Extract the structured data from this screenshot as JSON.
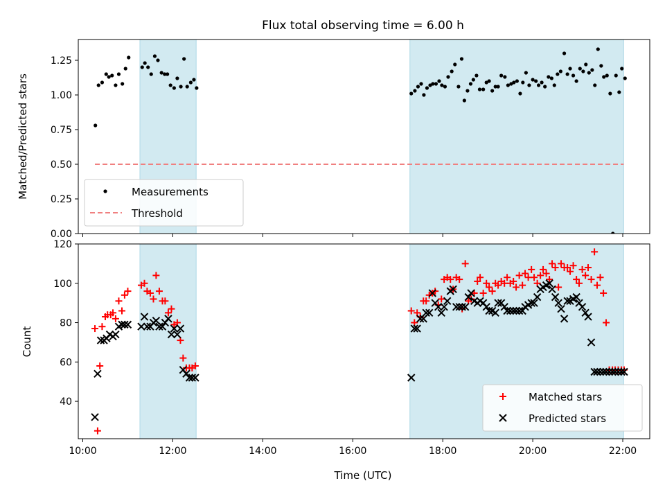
{
  "figure": {
    "title": "Flux total observing time = 6.00 h",
    "xlabel": "Time (UTC)"
  },
  "colors": {
    "shade": "#add8e6",
    "measurement": "#000000",
    "threshold": "#f08080",
    "matched": "#ff0000",
    "predicted": "#000000"
  },
  "chart_data": [
    {
      "type": "scatter",
      "panel": "top",
      "ylabel": "Matched/Predicted stars",
      "xlim": [
        9.9,
        22.6
      ],
      "ylim": [
        0.0,
        1.4
      ],
      "yticks": [
        0.0,
        0.25,
        0.5,
        0.75,
        1.0,
        1.25
      ],
      "ytick_labels": [
        "0.00",
        "0.25",
        "0.50",
        "0.75",
        "1.00",
        "1.25"
      ],
      "xticks": [
        10,
        12,
        14,
        16,
        18,
        20,
        22
      ],
      "xtick_labels": [
        "10:00",
        "12:00",
        "14:00",
        "16:00",
        "18:00",
        "20:00",
        "22:00"
      ],
      "show_xtick_labels": false,
      "shaded_spans": [
        [
          11.27,
          12.52
        ],
        [
          17.27,
          22.02
        ]
      ],
      "legend": {
        "placement": "lower-left",
        "entries": [
          "Measurements",
          "Threshold"
        ]
      },
      "series": [
        {
          "name": "Measurements",
          "kind": "points",
          "x": [
            10.28,
            10.35,
            10.43,
            10.52,
            10.58,
            10.65,
            10.73,
            10.8,
            10.88,
            10.95,
            11.02,
            11.32,
            11.38,
            11.45,
            11.52,
            11.6,
            11.67,
            11.75,
            11.82,
            11.88,
            11.95,
            12.03,
            12.1,
            12.18,
            12.25,
            12.32,
            12.4,
            12.47,
            12.53,
            17.3,
            17.38,
            17.45,
            17.52,
            17.58,
            17.65,
            17.72,
            17.78,
            17.85,
            17.92,
            17.98,
            18.05,
            18.12,
            18.2,
            18.27,
            18.35,
            18.42,
            18.48,
            18.55,
            18.62,
            18.68,
            18.75,
            18.82,
            18.9,
            18.97,
            19.03,
            19.1,
            19.17,
            19.23,
            19.3,
            19.38,
            19.45,
            19.52,
            19.58,
            19.65,
            19.72,
            19.78,
            19.85,
            19.92,
            20.0,
            20.07,
            20.13,
            20.2,
            20.27,
            20.35,
            20.42,
            20.48,
            20.55,
            20.62,
            20.7,
            20.77,
            20.83,
            20.9,
            20.97,
            21.05,
            21.12,
            21.18,
            21.25,
            21.32,
            21.38,
            21.45,
            21.52,
            21.58,
            21.65,
            21.72,
            21.78,
            21.85,
            21.92,
            21.98,
            22.05
          ],
          "y": [
            0.78,
            1.07,
            1.09,
            1.15,
            1.13,
            1.14,
            1.07,
            1.15,
            1.08,
            1.19,
            1.27,
            1.2,
            1.23,
            1.2,
            1.15,
            1.28,
            1.25,
            1.16,
            1.15,
            1.15,
            1.07,
            1.05,
            1.12,
            1.06,
            1.26,
            1.06,
            1.09,
            1.11,
            1.05,
            1.01,
            1.03,
            1.06,
            1.08,
            1.0,
            1.05,
            1.07,
            1.08,
            1.08,
            1.1,
            1.07,
            1.06,
            1.13,
            1.17,
            1.22,
            1.06,
            1.26,
            0.96,
            1.03,
            1.08,
            1.11,
            1.14,
            1.04,
            1.04,
            1.09,
            1.1,
            1.03,
            1.06,
            1.06,
            1.14,
            1.13,
            1.07,
            1.08,
            1.09,
            1.1,
            1.01,
            1.09,
            1.16,
            1.07,
            1.11,
            1.1,
            1.07,
            1.09,
            1.06,
            1.13,
            1.12,
            1.07,
            1.15,
            1.17,
            1.3,
            1.15,
            1.19,
            1.14,
            1.1,
            1.19,
            1.17,
            1.22,
            1.16,
            1.18,
            1.07,
            1.33,
            1.21,
            1.13,
            1.14,
            1.01,
            0.0,
            1.14,
            1.02,
            1.19,
            1.12
          ]
        },
        {
          "name": "Threshold",
          "kind": "dashed-line",
          "x": [
            10.27,
            22.02
          ],
          "y": [
            0.5,
            0.5
          ]
        }
      ]
    },
    {
      "type": "scatter",
      "panel": "bottom",
      "ylabel": "Count",
      "xlabel": "Time (UTC)",
      "xlim": [
        9.9,
        22.6
      ],
      "ylim": [
        21,
        120
      ],
      "yticks": [
        40,
        60,
        80,
        100,
        120
      ],
      "ytick_labels": [
        "40",
        "60",
        "80",
        "100",
        "120"
      ],
      "xticks": [
        10,
        12,
        14,
        16,
        18,
        20,
        22
      ],
      "xtick_labels": [
        "10:00",
        "12:00",
        "14:00",
        "16:00",
        "18:00",
        "20:00",
        "22:00"
      ],
      "shaded_spans": [
        [
          11.27,
          12.52
        ],
        [
          17.27,
          22.02
        ]
      ],
      "legend": {
        "placement": "lower-right",
        "entries": [
          "Matched stars",
          "Predicted stars"
        ]
      },
      "series": [
        {
          "name": "Matched stars",
          "kind": "plus",
          "x": [
            10.27,
            10.33,
            10.38,
            10.43,
            10.5,
            10.55,
            10.62,
            10.67,
            10.73,
            10.8,
            10.87,
            10.93,
            11.0,
            11.3,
            11.37,
            11.43,
            11.5,
            11.57,
            11.63,
            11.7,
            11.77,
            11.83,
            11.9,
            11.97,
            12.03,
            12.1,
            12.17,
            12.23,
            12.3,
            12.37,
            12.43,
            12.5,
            17.3,
            17.37,
            17.43,
            17.5,
            17.57,
            17.63,
            17.7,
            17.77,
            17.83,
            17.9,
            17.97,
            18.03,
            18.1,
            18.17,
            18.23,
            18.3,
            18.37,
            18.43,
            18.5,
            18.57,
            18.63,
            18.7,
            18.77,
            18.83,
            18.9,
            18.97,
            19.03,
            19.1,
            19.17,
            19.23,
            19.3,
            19.37,
            19.43,
            19.5,
            19.57,
            19.63,
            19.7,
            19.77,
            19.83,
            19.9,
            19.97,
            20.03,
            20.1,
            20.17,
            20.23,
            20.3,
            20.37,
            20.43,
            20.5,
            20.57,
            20.63,
            20.7,
            20.77,
            20.83,
            20.9,
            20.97,
            21.03,
            21.1,
            21.17,
            21.23,
            21.3,
            21.37,
            21.43,
            21.5,
            21.57,
            21.63,
            21.7,
            21.77,
            21.83,
            21.9,
            21.97,
            22.03
          ],
          "y": [
            77,
            25,
            58,
            78,
            83,
            84,
            84,
            85,
            82,
            91,
            86,
            94,
            96,
            99,
            100,
            96,
            95,
            92,
            104,
            96,
            91,
            91,
            85,
            87,
            79,
            80,
            71,
            62,
            57,
            57,
            57,
            58,
            86,
            80,
            85,
            83,
            91,
            91,
            94,
            95,
            96,
            89,
            92,
            102,
            103,
            102,
            97,
            103,
            102,
            87,
            110,
            91,
            92,
            95,
            101,
            103,
            95,
            100,
            98,
            96,
            100,
            99,
            101,
            100,
            103,
            100,
            101,
            98,
            104,
            99,
            105,
            103,
            107,
            103,
            100,
            104,
            107,
            105,
            102,
            110,
            108,
            98,
            110,
            108,
            108,
            106,
            109,
            102,
            100,
            107,
            104,
            108,
            102,
            116,
            99,
            103,
            95,
            80,
            56,
            56,
            56,
            56,
            56,
            56
          ],
          "note_y_tail": ""
        },
        {
          "name": "Predicted stars",
          "kind": "x",
          "x": [
            10.27,
            10.33,
            10.4,
            10.47,
            10.53,
            10.6,
            10.67,
            10.73,
            10.8,
            10.87,
            10.93,
            11.0,
            11.3,
            11.37,
            11.43,
            11.5,
            11.57,
            11.63,
            11.7,
            11.77,
            11.83,
            11.9,
            11.97,
            12.03,
            12.1,
            12.17,
            12.23,
            12.3,
            12.37,
            12.43,
            12.5,
            17.3,
            17.37,
            17.43,
            17.5,
            17.57,
            17.63,
            17.7,
            17.77,
            17.83,
            17.9,
            17.97,
            18.03,
            18.1,
            18.17,
            18.23,
            18.3,
            18.37,
            18.43,
            18.5,
            18.57,
            18.63,
            18.7,
            18.77,
            18.83,
            18.9,
            18.97,
            19.03,
            19.1,
            19.17,
            19.23,
            19.3,
            19.37,
            19.43,
            19.5,
            19.57,
            19.63,
            19.7,
            19.77,
            19.83,
            19.9,
            19.97,
            20.03,
            20.1,
            20.17,
            20.23,
            20.3,
            20.37,
            20.43,
            20.5,
            20.57,
            20.63,
            20.7,
            20.77,
            20.83,
            20.9,
            20.97,
            21.03,
            21.1,
            21.17,
            21.23,
            21.3,
            21.37,
            21.43,
            21.5,
            21.57,
            21.63,
            21.7,
            21.77,
            21.83,
            21.9,
            21.97,
            22.03
          ],
          "y": [
            32,
            54,
            71,
            71,
            72,
            74,
            73,
            74,
            78,
            79,
            79,
            79,
            78,
            83,
            78,
            78,
            80,
            81,
            78,
            78,
            80,
            82,
            74,
            77,
            74,
            77,
            56,
            54,
            52,
            52,
            52,
            52,
            77,
            77,
            82,
            82,
            85,
            85,
            95,
            90,
            88,
            85,
            88,
            91,
            96,
            97,
            88,
            88,
            88,
            88,
            93,
            95,
            91,
            90,
            91,
            90,
            88,
            86,
            86,
            85,
            90,
            90,
            88,
            86,
            86,
            86,
            86,
            86,
            86,
            88,
            89,
            90,
            90,
            93,
            97,
            98,
            99,
            100,
            97,
            93,
            90,
            87,
            82,
            91,
            91,
            92,
            93,
            90,
            88,
            85,
            83,
            70,
            55,
            55,
            55,
            55,
            55,
            55,
            55,
            55,
            55,
            55,
            55
          ],
          "note": ""
        }
      ]
    }
  ]
}
